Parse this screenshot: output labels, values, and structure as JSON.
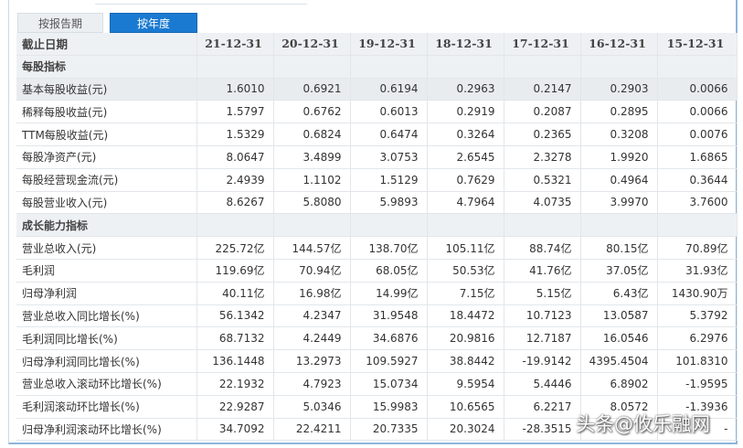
{
  "tabs": [
    {
      "label": "按报告期"
    },
    {
      "label": "按年度"
    }
  ],
  "header": {
    "first": "截止日期",
    "dates": [
      "21-12-31",
      "20-12-31",
      "19-12-31",
      "18-12-31",
      "17-12-31",
      "16-12-31",
      "15-12-31"
    ]
  },
  "sections": [
    {
      "title": "每股指标",
      "rows": [
        {
          "label": "基本每股收益(元)",
          "values": [
            "1.6010",
            "0.6921",
            "0.6194",
            "0.2963",
            "0.2147",
            "0.2903",
            "0.0066"
          ],
          "highlight": true
        },
        {
          "label": "稀释每股收益(元)",
          "values": [
            "1.5797",
            "0.6762",
            "0.6013",
            "0.2919",
            "0.2087",
            "0.2895",
            "0.0066"
          ]
        },
        {
          "label": "TTM每股收益(元)",
          "values": [
            "1.5329",
            "0.6824",
            "0.6474",
            "0.3264",
            "0.2365",
            "0.3208",
            "0.0076"
          ]
        },
        {
          "label": "每股净资产(元)",
          "values": [
            "8.0647",
            "3.4899",
            "3.0753",
            "2.6545",
            "2.3278",
            "1.9920",
            "1.6865"
          ]
        },
        {
          "label": "每股经营现金流(元)",
          "values": [
            "2.4939",
            "1.1102",
            "1.5129",
            "0.7629",
            "0.5321",
            "0.4964",
            "0.3644"
          ]
        },
        {
          "label": "每股营业收入(元)",
          "values": [
            "8.6267",
            "5.8080",
            "5.9893",
            "4.7964",
            "4.0735",
            "3.9970",
            "3.7600"
          ]
        }
      ]
    },
    {
      "title": "成长能力指标",
      "rows": [
        {
          "label": "营业总收入(元)",
          "values": [
            "225.72亿",
            "144.57亿",
            "138.70亿",
            "105.11亿",
            "88.74亿",
            "80.15亿",
            "70.89亿"
          ]
        },
        {
          "label": "毛利润",
          "values": [
            "119.69亿",
            "70.94亿",
            "68.05亿",
            "50.53亿",
            "41.76亿",
            "37.05亿",
            "31.93亿"
          ]
        },
        {
          "label": "归母净利润",
          "values": [
            "40.11亿",
            "16.98亿",
            "14.99亿",
            "7.15亿",
            "5.15亿",
            "6.43亿",
            "1430.90万"
          ]
        },
        {
          "label": "营业总收入同比增长(%)",
          "values": [
            "56.1342",
            "4.2347",
            "31.9548",
            "18.4472",
            "10.7123",
            "13.0587",
            "5.3792"
          ]
        },
        {
          "label": "毛利润同比增长(%)",
          "values": [
            "68.7132",
            "4.2449",
            "34.6876",
            "20.9816",
            "12.7187",
            "16.0546",
            "6.2976"
          ]
        },
        {
          "label": "归母净利润同比增长(%)",
          "values": [
            "136.1448",
            "13.2973",
            "109.5927",
            "38.8442",
            "-19.9142",
            "4395.4504",
            "101.8310"
          ]
        },
        {
          "label": "营业总收入滚动环比增长(%)",
          "values": [
            "22.1932",
            "4.7923",
            "15.0734",
            "9.5954",
            "5.4446",
            "6.8902",
            "-1.9595"
          ]
        },
        {
          "label": "毛利润滚动环比增长(%)",
          "values": [
            "22.9287",
            "5.0346",
            "15.9983",
            "10.6565",
            "6.2217",
            "8.0572",
            "-1.3936"
          ]
        },
        {
          "label": "归母净利润滚动环比增长(%)",
          "values": [
            "34.7092",
            "22.4211",
            "20.7335",
            "20.3024",
            "-28.3515",
            "",
            "-"
          ]
        }
      ]
    }
  ],
  "watermark": "头条@攸乐融网"
}
